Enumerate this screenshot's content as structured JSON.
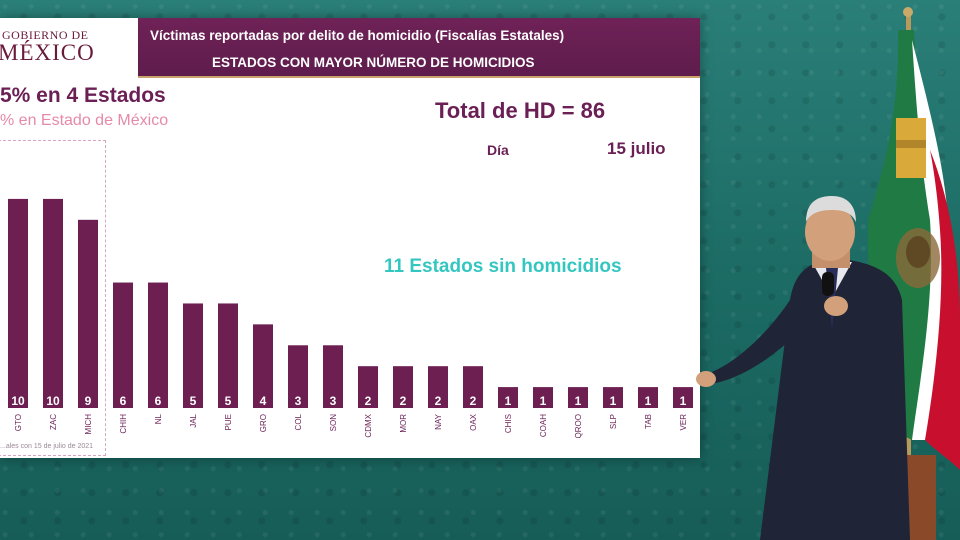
{
  "logo": {
    "line1": "GOBIERNO DE",
    "line2": "MÉXICO"
  },
  "banner": {
    "title": "Víctimas reportadas por delito de homicidio (Fiscalías Estatales)",
    "subtitle": "ESTADOS CON MAYOR NÚMERO DE HOMICIDIOS"
  },
  "headline_states": "5% en 4 Estados",
  "headline_edomex": "% en Estado de México",
  "total": "Total de HD = 86",
  "dia_label": "Día",
  "dia_value": "15 julio",
  "sin_homicidios": "11 Estados sin homicidios",
  "source_note": "...ales con 15 de julio de 2021",
  "colors": {
    "bar": "#6e1f52",
    "accent": "#34c6c1",
    "banner": "#6f2257",
    "flag_green": "#1f7a43",
    "flag_red": "#c8102e"
  },
  "chart_data": {
    "type": "bar",
    "categories": [
      "GTO",
      "ZAC",
      "MICH",
      "CHIH",
      "NL",
      "JAL",
      "PUE",
      "GRO",
      "COL",
      "SON",
      "CDMX",
      "MOR",
      "NAY",
      "OAX",
      "CHIS",
      "COAH",
      "QROO",
      "SLP",
      "TAB",
      "VER"
    ],
    "values": [
      10,
      10,
      9,
      6,
      6,
      5,
      5,
      4,
      3,
      3,
      2,
      2,
      2,
      2,
      1,
      1,
      1,
      1,
      1,
      1
    ],
    "ylim": [
      0,
      11
    ]
  }
}
